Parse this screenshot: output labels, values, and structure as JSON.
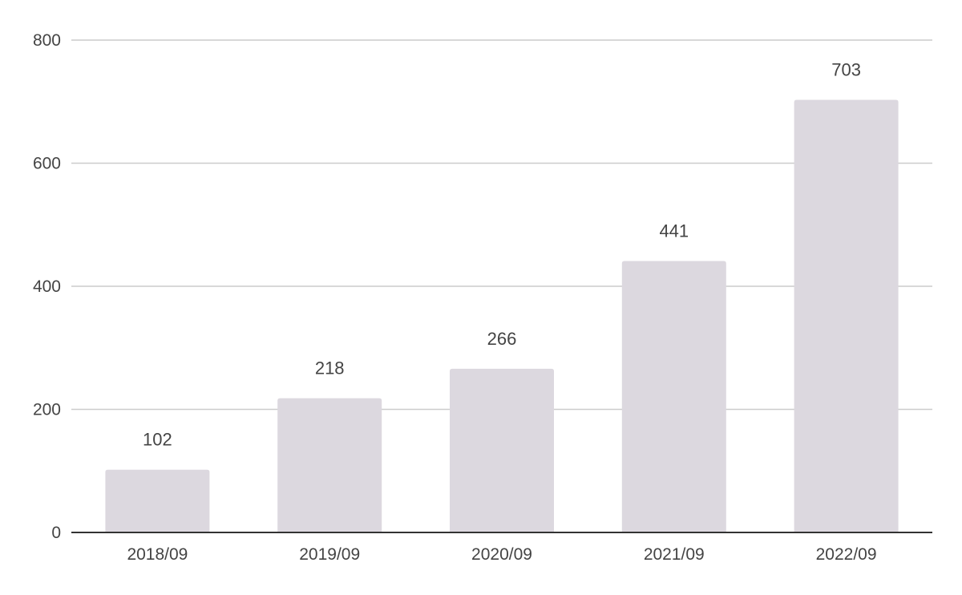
{
  "chart_data": {
    "type": "bar",
    "title": "",
    "xlabel": "",
    "ylabel": "",
    "categories": [
      "2018/09",
      "2019/09",
      "2020/09",
      "2021/09",
      "2022/09"
    ],
    "values": [
      102,
      218,
      266,
      441,
      703
    ],
    "data_labels": [
      "102",
      "218",
      "266",
      "441",
      "703"
    ],
    "ylim": [
      0,
      800
    ],
    "yticks": [
      0,
      200,
      400,
      600,
      800
    ],
    "ytick_labels": [
      "0",
      "200",
      "400",
      "600",
      "800"
    ],
    "grid": true,
    "legend": "none",
    "colors": {
      "bar": "#dcd8df",
      "grid": "#cccccc",
      "axis": "#333333",
      "text": "#444444"
    }
  }
}
